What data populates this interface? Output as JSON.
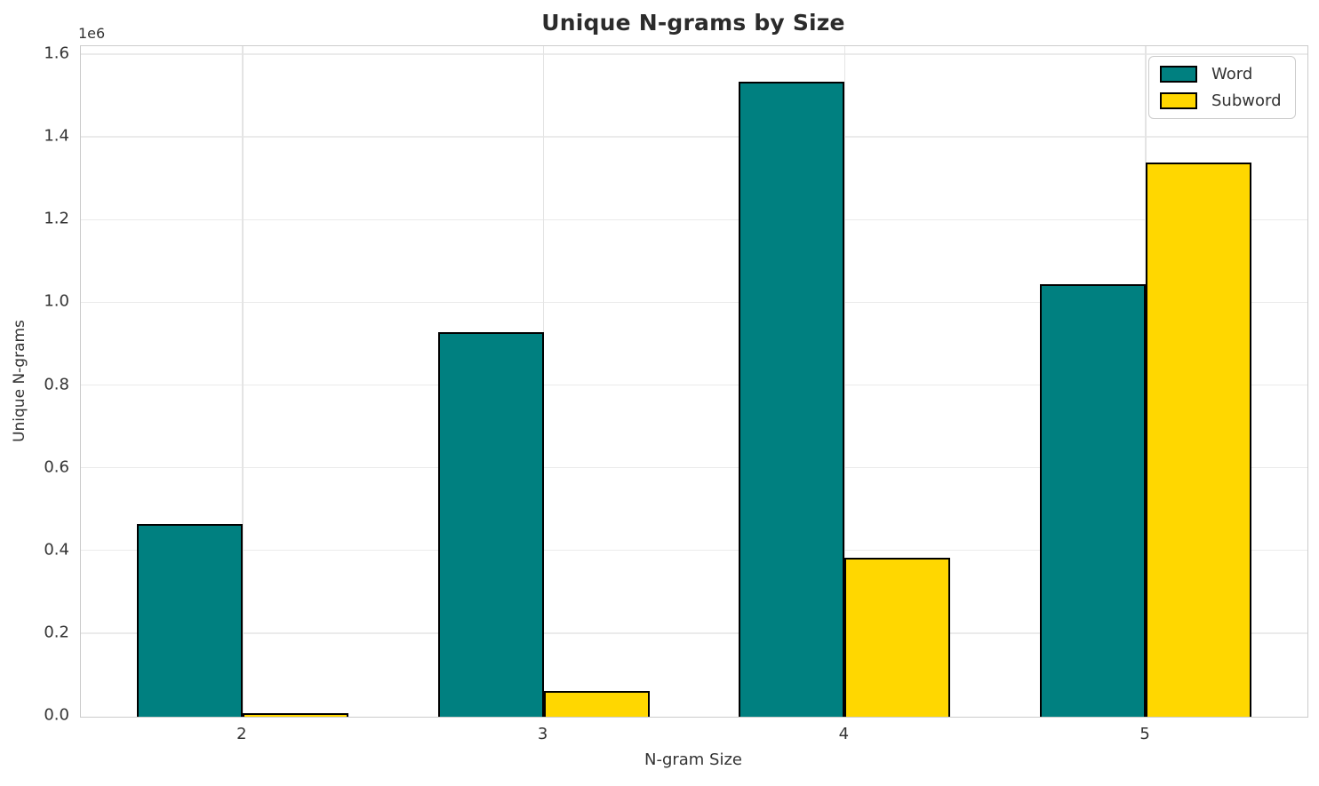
{
  "chart_data": {
    "type": "bar",
    "title": "Unique N-grams by Size",
    "xlabel": "N-gram Size",
    "ylabel": "Unique N-grams",
    "y_offset_label": "1e6",
    "categories": [
      "2",
      "3",
      "4",
      "5"
    ],
    "series": [
      {
        "name": "Word",
        "color": "#008080",
        "edge_color": "#000000",
        "values": [
          465000,
          930000,
          1535000,
          1045000
        ]
      },
      {
        "name": "Subword",
        "color": "#FFD700",
        "edge_color": "#000000",
        "values": [
          8000,
          62000,
          385000,
          1340000
        ]
      }
    ],
    "ylim": [
      0,
      1600000
    ],
    "yticks": [
      0,
      200000,
      400000,
      600000,
      800000,
      1000000,
      1200000,
      1400000,
      1600000
    ],
    "ytick_labels": [
      "0.0",
      "0.2",
      "0.4",
      "0.6",
      "0.8",
      "1.0",
      "1.2",
      "1.4",
      "1.6"
    ],
    "grid": true,
    "legend": {
      "position": "upper right",
      "entries": [
        "Word",
        "Subword"
      ]
    }
  }
}
